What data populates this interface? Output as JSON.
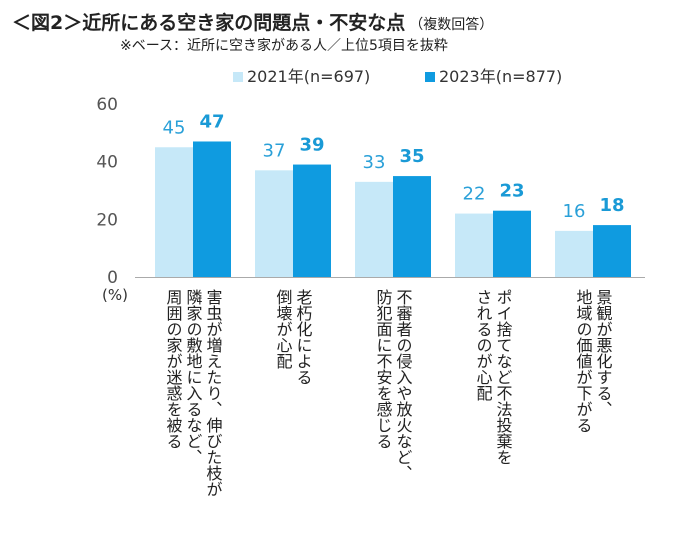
{
  "title": "＜図2＞近所にある空き家の問題点・不安な点",
  "title_suffix": "（複数回答）",
  "subtitle": "※ベース：近所に空き家がある人／上位5項目を抜粋",
  "colors": {
    "series_2021": "#c6e8f8",
    "series_2023": "#0f9be0",
    "axis": "#aaaaaa",
    "label_text": "#1a9ad6"
  },
  "chart_data": {
    "type": "bar",
    "title": "＜図2＞近所にある空き家の問題点・不安な点（複数回答）",
    "unit_label": "(%)",
    "ylim": [
      0,
      60
    ],
    "yticks": [
      0,
      20,
      40,
      60
    ],
    "legend_position": "top",
    "categories": [
      [
        "害虫が増えたり、伸びた枝が",
        "隣家の敷地に入るなど、",
        "周囲の家が迷惑を被る"
      ],
      [
        "老朽化による",
        "倒壊が心配"
      ],
      [
        "不審者の侵入や放火など、",
        "防犯面に不安を感じる"
      ],
      [
        "ポイ捨てなど不法投棄を",
        "されるのが心配"
      ],
      [
        "景観が悪化する、",
        "地域の価値が下がる"
      ]
    ],
    "series": [
      {
        "name": "2021年(n=697)",
        "values": [
          45,
          37,
          33,
          22,
          16
        ]
      },
      {
        "name": "2023年(n=877)",
        "values": [
          47,
          39,
          35,
          23,
          18
        ]
      }
    ]
  }
}
